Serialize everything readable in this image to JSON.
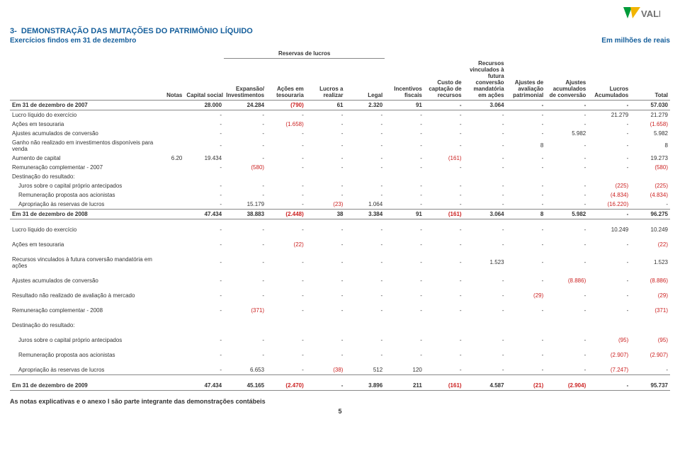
{
  "logo_text": "VALE",
  "logo_colors": {
    "green": "#009b3a",
    "yellow": "#f1b400",
    "text": "#707070"
  },
  "title_prefix": "3-",
  "title": "DEMONSTRAÇÃO DAS MUTAÇÕES DO PATRIMÔNIO LÍQUIDO",
  "subtitle": "Exercícios findos em 31 de dezembro",
  "unit": "Em milhões de reais",
  "reserve_group": "Reservas de lucros",
  "headers": {
    "notas": "Notas",
    "capital_social": "Capital social",
    "expansao": "Expansão/ Investimentos",
    "acoes_tes": "Ações em tesouraria",
    "lucros_real": "Lucros a realizar",
    "legal": "Legal",
    "incentivos": "Incentivos fiscais",
    "custo": "Custo de captação de recursos",
    "recursos": "Recursos vinculados à futura conversão mandatória em ações",
    "ajustes_aval": "Ajustes de avaliação patrimonial",
    "ajustes_acum": "Ajustes acumulados de conversão",
    "lucros_acum": "Lucros Acumulados",
    "total": "Total"
  },
  "rows": [
    {
      "label": "Em 31 de dezembro de 2007",
      "bold": true,
      "underline": true,
      "cells": [
        "",
        "28.000",
        "24.284",
        "(790)",
        "61",
        "2.320",
        "91",
        "-",
        "3.064",
        "-",
        "-",
        "-",
        "57.030"
      ]
    },
    {
      "label": "Lucro líquido do exercício",
      "cells": [
        "",
        "-",
        "-",
        "-",
        "-",
        "-",
        "-",
        "-",
        "-",
        "-",
        "-",
        "21.279",
        "21.279"
      ]
    },
    {
      "label": "Ações em tesouraria",
      "cells": [
        "",
        "-",
        "-",
        "(1.658)",
        "-",
        "-",
        "-",
        "-",
        "-",
        "-",
        "-",
        "-",
        "(1.658)"
      ]
    },
    {
      "label": "Ajustes acumulados de conversão",
      "cells": [
        "",
        "-",
        "-",
        "-",
        "-",
        "-",
        "-",
        "-",
        "-",
        "-",
        "5.982",
        "-",
        "5.982"
      ]
    },
    {
      "label": "Ganho não realizado em investimentos disponíveis para venda",
      "cells": [
        "",
        "-",
        "-",
        "-",
        "-",
        "-",
        "-",
        "-",
        "-",
        "8",
        "-",
        "-",
        "8"
      ]
    },
    {
      "label": "Aumento de capital",
      "cells": [
        "6.20",
        "19.434",
        "-",
        "-",
        "-",
        "-",
        "-",
        "(161)",
        "-",
        "-",
        "-",
        "-",
        "19.273"
      ]
    },
    {
      "label": "Remuneração complementar - 2007",
      "cells": [
        "",
        "-",
        "(580)",
        "-",
        "-",
        "-",
        "-",
        "-",
        "-",
        "-",
        "-",
        "-",
        "(580)"
      ]
    },
    {
      "label": "Destinação do resultado:",
      "cells": [
        "",
        "",
        "",
        "",
        "",
        "",
        "",
        "",
        "",
        "",
        "",
        "",
        ""
      ]
    },
    {
      "label": "Juros sobre o capital próprio antecipados",
      "indent": true,
      "cells": [
        "",
        "-",
        "-",
        "-",
        "-",
        "-",
        "-",
        "-",
        "-",
        "-",
        "-",
        "(225)",
        "(225)"
      ]
    },
    {
      "label": "Remuneração proposta aos acionistas",
      "indent": true,
      "cells": [
        "",
        "-",
        "-",
        "-",
        "-",
        "-",
        "-",
        "-",
        "-",
        "-",
        "-",
        "(4.834)",
        "(4.834)"
      ]
    },
    {
      "label": "Apropriação às reservas de lucros",
      "indent": true,
      "cells": [
        "",
        "-",
        "15.179",
        "-",
        "(23)",
        "1.064",
        "-",
        "-",
        "-",
        "-",
        "-",
        "(16.220)",
        "-"
      ]
    },
    {
      "label": "Em 31 de dezembro de 2008",
      "bold": true,
      "total": true,
      "cells": [
        "",
        "47.434",
        "38.883",
        "(2.448)",
        "38",
        "3.384",
        "91",
        "(161)",
        "3.064",
        "8",
        "5.982",
        "-",
        "96.275"
      ]
    },
    {
      "label": "Lucro líquido do exercício",
      "gap": true,
      "cells": [
        "",
        "-",
        "-",
        "-",
        "-",
        "-",
        "-",
        "-",
        "-",
        "-",
        "-",
        "10.249",
        "10.249"
      ]
    },
    {
      "label": "Ações em tesouraria",
      "gap": true,
      "cells": [
        "",
        "-",
        "-",
        "(22)",
        "-",
        "-",
        "-",
        "-",
        "-",
        "-",
        "-",
        "-",
        "(22)"
      ]
    },
    {
      "label": "Recursos vinculados à futura conversão mandatória em ações",
      "gap": true,
      "cells": [
        "",
        "-",
        "-",
        "-",
        "-",
        "-",
        "-",
        "-",
        "1.523",
        "-",
        "-",
        "-",
        "1.523"
      ]
    },
    {
      "label": "Ajustes acumulados de conversão",
      "gap": true,
      "cells": [
        "",
        "-",
        "-",
        "-",
        "-",
        "-",
        "-",
        "-",
        "-",
        "-",
        "(8.886)",
        "-",
        "(8.886)"
      ]
    },
    {
      "label": "Resultado não realizado de avaliação à mercado",
      "gap": true,
      "cells": [
        "",
        "-",
        "-",
        "-",
        "-",
        "-",
        "-",
        "-",
        "-",
        "(29)",
        "-",
        "-",
        "(29)"
      ]
    },
    {
      "label": "Remuneração complementar - 2008",
      "gap": true,
      "cells": [
        "",
        "-",
        "(371)",
        "-",
        "-",
        "-",
        "-",
        "-",
        "-",
        "-",
        "-",
        "-",
        "(371)"
      ]
    },
    {
      "label": "Destinação do resultado:",
      "gap": true,
      "cells": [
        "",
        "",
        "",
        "",
        "",
        "",
        "",
        "",
        "",
        "",
        "",
        "",
        ""
      ]
    },
    {
      "label": "Juros sobre o capital próprio antecipados",
      "indent": true,
      "gap": true,
      "cells": [
        "",
        "-",
        "-",
        "-",
        "-",
        "-",
        "-",
        "-",
        "-",
        "-",
        "-",
        "(95)",
        "(95)"
      ]
    },
    {
      "label": "Remuneração proposta aos acionistas",
      "indent": true,
      "gap": true,
      "cells": [
        "",
        "-",
        "-",
        "-",
        "-",
        "-",
        "-",
        "-",
        "-",
        "-",
        "-",
        "(2.907)",
        "(2.907)"
      ]
    },
    {
      "label": "Apropriação às reservas de lucros",
      "indent": true,
      "gap": true,
      "cells": [
        "",
        "-",
        "6.653",
        "-",
        "(38)",
        "512",
        "120",
        "-",
        "-",
        "-",
        "-",
        "(7.247)",
        "-"
      ]
    },
    {
      "label": "Em 31 de dezembro de 2009",
      "bold": true,
      "total": true,
      "gap": true,
      "cells": [
        "",
        "47.434",
        "45.165",
        "(2.470)",
        "-",
        "3.896",
        "211",
        "(161)",
        "4.587",
        "(21)",
        "(2.904)",
        "-",
        "95.737"
      ]
    }
  ],
  "footer": "As notas explicativas e o anexo I são parte integrante das demonstrações contábeis",
  "page_num": "5",
  "colors": {
    "heading": "#145e9b",
    "negative": "#c22222",
    "text": "#333333"
  }
}
